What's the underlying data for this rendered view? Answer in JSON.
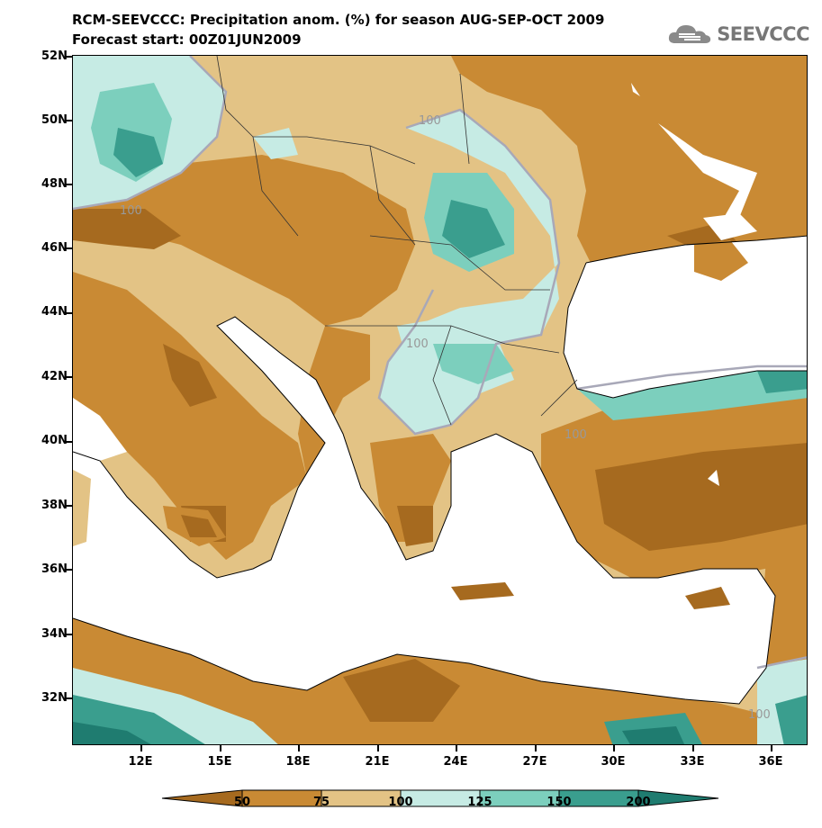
{
  "title_line1": "RCM-SEEVCCC: Precipitation anom. (%) for season AUG-SEP-OCT 2009",
  "title_line2": "Forecast start: 00Z01JUN2009",
  "logo_text": "SEEVCCC",
  "lat_labels": [
    "52N",
    "50N",
    "48N",
    "46N",
    "44N",
    "42N",
    "40N",
    "38N",
    "36N",
    "34N",
    "32N"
  ],
  "lon_labels": [
    "12E",
    "15E",
    "18E",
    "21E",
    "24E",
    "27E",
    "30E",
    "33E",
    "36E"
  ],
  "contour_label": "100",
  "colorbar": {
    "labels": [
      "50",
      "75",
      "100",
      "125",
      "150",
      "200"
    ],
    "colors": [
      "#a66a1f",
      "#c98a34",
      "#e3c385",
      "#c6ebe4",
      "#7ccfbd",
      "#3a9e8e",
      "#1f7c70"
    ]
  },
  "colors": {
    "sea": "#ffffff",
    "dark_brown": "#a66a1f",
    "brown": "#c98a34",
    "tan": "#e3c385",
    "light_teal": "#c6ebe4",
    "teal": "#7ccfbd",
    "dark_teal": "#3a9e8e",
    "deep_teal": "#1f7c70"
  }
}
